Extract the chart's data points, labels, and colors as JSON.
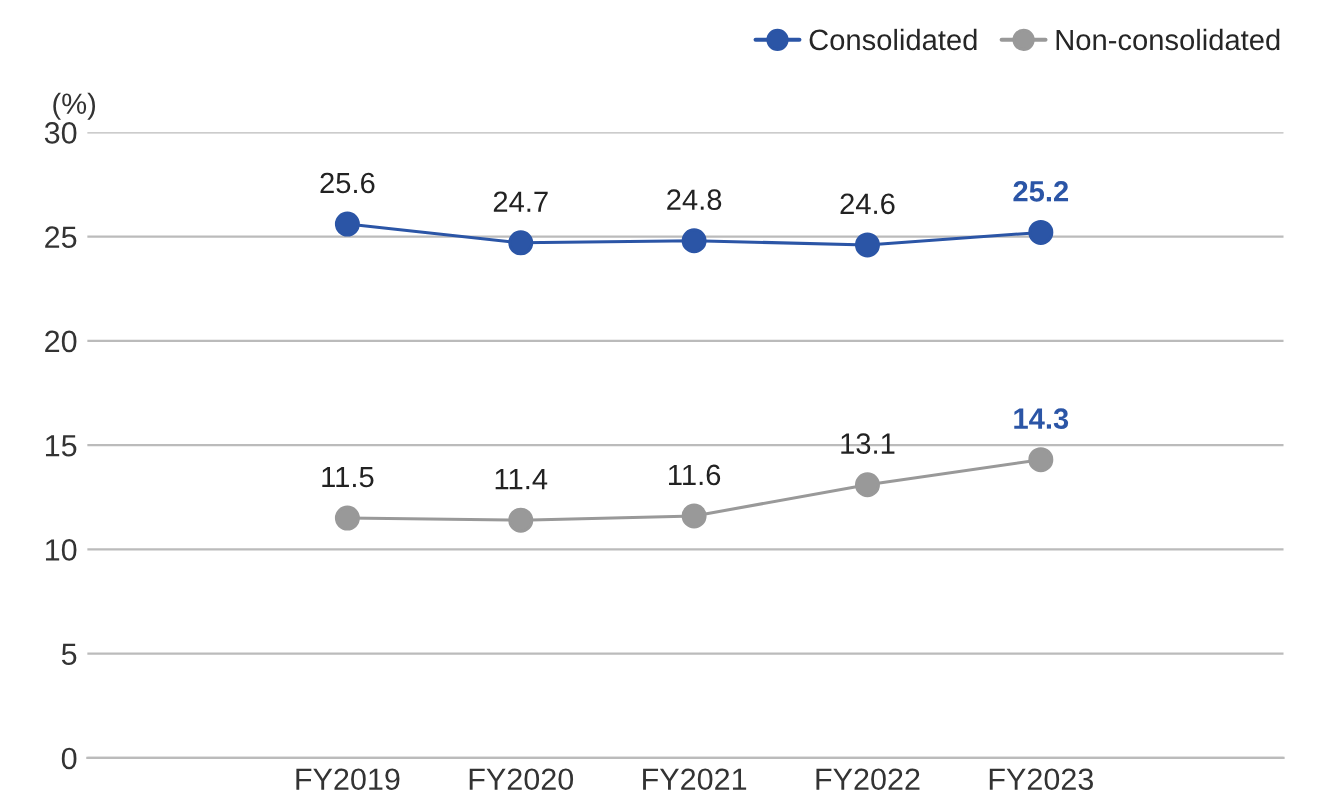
{
  "chart_data": {
    "type": "line",
    "ylabel": "(%)",
    "categories": [
      "FY2019",
      "FY2020",
      "FY2021",
      "FY2022",
      "FY2023"
    ],
    "series": [
      {
        "name": "Consolidated",
        "color": "#2b55a6",
        "values": [
          25.6,
          24.7,
          24.8,
          24.6,
          25.2
        ]
      },
      {
        "name": "Non-consolidated",
        "color": "#999999",
        "values": [
          11.5,
          11.4,
          11.6,
          13.1,
          14.3
        ]
      }
    ],
    "ylim": [
      0,
      30
    ],
    "yticks": [
      0,
      5,
      10,
      15,
      20,
      25,
      30
    ],
    "grid": "y",
    "legend": "top right",
    "marker": "circle",
    "line_style": "solid",
    "data_labels": true
  }
}
